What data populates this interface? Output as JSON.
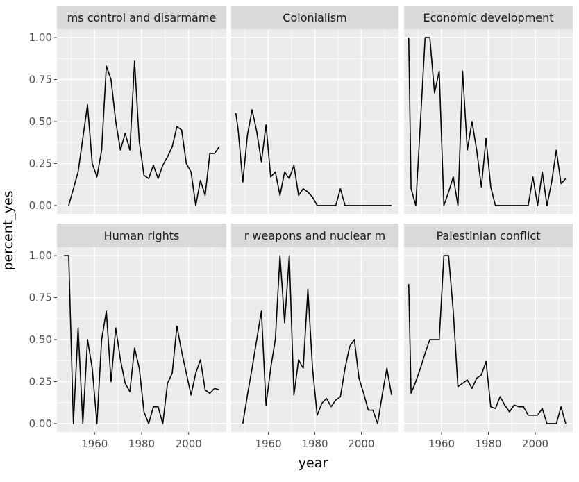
{
  "chart_data": {
    "type": "line",
    "facet_type": "wrap",
    "xlabel": "year",
    "ylabel": "percent_yes",
    "xlim": [
      1944,
      2016
    ],
    "ylim": [
      -0.05,
      1.05
    ],
    "x_ticks": [
      1960,
      1980,
      2000
    ],
    "y_ticks": [
      0,
      0.25,
      0.5,
      0.75,
      1
    ],
    "y_tick_labels": [
      "0.00",
      "0.25",
      "0.50",
      "0.75",
      "1.00"
    ],
    "grid": true,
    "colors": {
      "panel_bg": "#ebebeb",
      "grid": "#ffffff",
      "strip_bg": "#d9d9d9",
      "line": "#000000",
      "text": "#4d4d4d",
      "axis_title": "#000000"
    },
    "panels": [
      {
        "title": "ms control and disarmame",
        "x": [
          1949,
          1953,
          1955,
          1957,
          1959,
          1961,
          1963,
          1965,
          1967,
          1969,
          1971,
          1973,
          1975,
          1977,
          1979,
          1981,
          1983,
          1985,
          1987,
          1989,
          1991,
          1993,
          1995,
          1997,
          1999,
          2001,
          2003,
          2005,
          2007,
          2009,
          2011,
          2013
        ],
        "y": [
          0.0,
          0.2,
          0.4,
          0.6,
          0.25,
          0.17,
          0.33,
          0.83,
          0.75,
          0.5,
          0.33,
          0.43,
          0.33,
          0.86,
          0.38,
          0.18,
          0.16,
          0.24,
          0.16,
          0.24,
          0.29,
          0.35,
          0.47,
          0.45,
          0.25,
          0.2,
          0.0,
          0.15,
          0.06,
          0.31,
          0.31,
          0.35
        ]
      },
      {
        "title": "Colonialism",
        "x": [
          1946,
          1947,
          1949,
          1951,
          1953,
          1955,
          1957,
          1959,
          1961,
          1963,
          1965,
          1967,
          1969,
          1971,
          1973,
          1975,
          1977,
          1979,
          1981,
          1983,
          1985,
          1987,
          1989,
          1991,
          1993,
          1995,
          1997,
          1999,
          2001,
          2003,
          2005,
          2007,
          2009,
          2011,
          2013
        ],
        "y": [
          0.55,
          0.45,
          0.14,
          0.42,
          0.57,
          0.44,
          0.26,
          0.48,
          0.17,
          0.2,
          0.06,
          0.2,
          0.16,
          0.24,
          0.06,
          0.1,
          0.08,
          0.05,
          0.0,
          0.0,
          0.0,
          0.0,
          0.0,
          0.1,
          0.0,
          0.0,
          0.0,
          0.0,
          0.0,
          0.0,
          0.0,
          0.0,
          0.0,
          0.0,
          0.0
        ]
      },
      {
        "title": "Economic development",
        "x": [
          1946,
          1947,
          1949,
          1951,
          1953,
          1955,
          1957,
          1959,
          1961,
          1963,
          1965,
          1967,
          1969,
          1971,
          1973,
          1975,
          1977,
          1979,
          1981,
          1983,
          1985,
          1987,
          1989,
          1991,
          1993,
          1995,
          1997,
          1999,
          2001,
          2003,
          2005,
          2007,
          2009,
          2011,
          2013
        ],
        "y": [
          1.0,
          0.1,
          0.0,
          0.5,
          1.0,
          1.0,
          0.67,
          0.8,
          0.0,
          0.08,
          0.17,
          0.0,
          0.8,
          0.33,
          0.5,
          0.33,
          0.11,
          0.4,
          0.11,
          0.0,
          0.0,
          0.0,
          0.0,
          0.0,
          0.0,
          0.0,
          0.0,
          0.17,
          0.0,
          0.2,
          0.0,
          0.14,
          0.33,
          0.13,
          0.16
        ]
      },
      {
        "title": "Human rights",
        "x": [
          1947,
          1949,
          1951,
          1953,
          1955,
          1957,
          1959,
          1961,
          1963,
          1965,
          1967,
          1969,
          1971,
          1973,
          1975,
          1977,
          1979,
          1981,
          1983,
          1985,
          1987,
          1989,
          1991,
          1993,
          1995,
          1997,
          1999,
          2001,
          2003,
          2005,
          2007,
          2009,
          2011,
          2013
        ],
        "y": [
          1.0,
          1.0,
          0.0,
          0.57,
          0.0,
          0.5,
          0.33,
          0.0,
          0.5,
          0.67,
          0.25,
          0.57,
          0.38,
          0.24,
          0.19,
          0.45,
          0.33,
          0.07,
          0.0,
          0.1,
          0.1,
          0.0,
          0.24,
          0.3,
          0.58,
          0.43,
          0.3,
          0.17,
          0.3,
          0.38,
          0.2,
          0.18,
          0.21,
          0.2
        ]
      },
      {
        "title": "r weapons and nuclear m",
        "x": [
          1949,
          1951,
          1953,
          1955,
          1957,
          1959,
          1961,
          1963,
          1965,
          1967,
          1969,
          1971,
          1973,
          1975,
          1977,
          1979,
          1981,
          1983,
          1985,
          1987,
          1989,
          1991,
          1993,
          1995,
          1997,
          1999,
          2001,
          2003,
          2005,
          2007,
          2009,
          2011,
          2013
        ],
        "y": [
          0.0,
          0.17,
          0.33,
          0.5,
          0.67,
          0.11,
          0.33,
          0.5,
          1.0,
          0.6,
          1.0,
          0.17,
          0.38,
          0.33,
          0.8,
          0.33,
          0.05,
          0.12,
          0.15,
          0.1,
          0.14,
          0.16,
          0.33,
          0.46,
          0.5,
          0.27,
          0.18,
          0.08,
          0.08,
          0.0,
          0.17,
          0.33,
          0.17
        ]
      },
      {
        "title": "Palestinian conflict",
        "x": [
          1946,
          1947,
          1949,
          1951,
          1953,
          1955,
          1957,
          1959,
          1961,
          1963,
          1965,
          1967,
          1969,
          1971,
          1973,
          1975,
          1977,
          1979,
          1981,
          1983,
          1985,
          1987,
          1989,
          1991,
          1993,
          1995,
          1997,
          1999,
          2001,
          2003,
          2005,
          2007,
          2009,
          2011,
          2013
        ],
        "y": [
          0.83,
          0.18,
          0.25,
          0.33,
          0.42,
          0.5,
          0.5,
          0.5,
          1.0,
          1.0,
          0.67,
          0.22,
          0.24,
          0.26,
          0.21,
          0.27,
          0.29,
          0.37,
          0.1,
          0.09,
          0.16,
          0.11,
          0.07,
          0.11,
          0.1,
          0.1,
          0.05,
          0.05,
          0.05,
          0.09,
          0.0,
          0.0,
          0.0,
          0.1,
          0.0
        ]
      }
    ]
  }
}
